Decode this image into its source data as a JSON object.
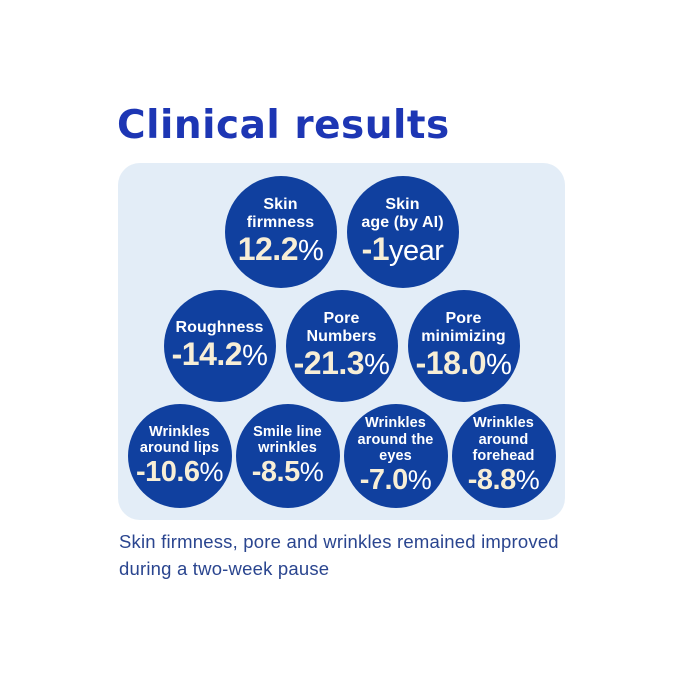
{
  "title": "Clinical results",
  "caption": "Skin firmness, pore and wrinkles remained improved during a two-week pause",
  "colors": {
    "title": "#1d36b4",
    "panel_bg": "#e3edf7",
    "circle_bg": "#10409f",
    "label_text": "#ffffff",
    "value_text": "#f7eed6",
    "caption_text": "#2a458f"
  },
  "rows": [
    {
      "circles": [
        {
          "label": "Skin\nfirmness",
          "value": "12.2",
          "suffix": "%"
        },
        {
          "label": "Skin\nage (by AI)",
          "value": "-1",
          "suffix": "year"
        }
      ]
    },
    {
      "circles": [
        {
          "label": "Roughness",
          "value": "-14.2",
          "suffix": "%"
        },
        {
          "label": "Pore\nNumbers",
          "value": "-21.3",
          "suffix": "%"
        },
        {
          "label": "Pore\nminimizing",
          "value": "-18.0",
          "suffix": "%"
        }
      ]
    },
    {
      "circles": [
        {
          "label": "Wrinkles\naround lips",
          "value": "-10.6",
          "suffix": "%"
        },
        {
          "label": "Smile line\nwrinkles",
          "value": "-8.5",
          "suffix": "%"
        },
        {
          "label": "Wrinkles\naround the\neyes",
          "value": "-7.0",
          "suffix": "%"
        },
        {
          "label": "Wrinkles\naround\nforehead",
          "value": "-8.8",
          "suffix": "%"
        }
      ]
    }
  ],
  "chart_data": {
    "type": "table",
    "title": "Clinical results",
    "categories": [
      "Skin firmness",
      "Skin age (by AI)",
      "Roughness",
      "Pore Numbers",
      "Pore minimizing",
      "Wrinkles around lips",
      "Smile line wrinkles",
      "Wrinkles around the eyes",
      "Wrinkles around forehead"
    ],
    "values": [
      12.2,
      -1,
      -14.2,
      -21.3,
      -18.0,
      -10.6,
      -8.5,
      -7.0,
      -8.8
    ],
    "units": [
      "%",
      "year",
      "%",
      "%",
      "%",
      "%",
      "%",
      "%",
      "%"
    ],
    "annotation": "Skin firmness, pore and wrinkles remained improved during a two-week pause"
  }
}
